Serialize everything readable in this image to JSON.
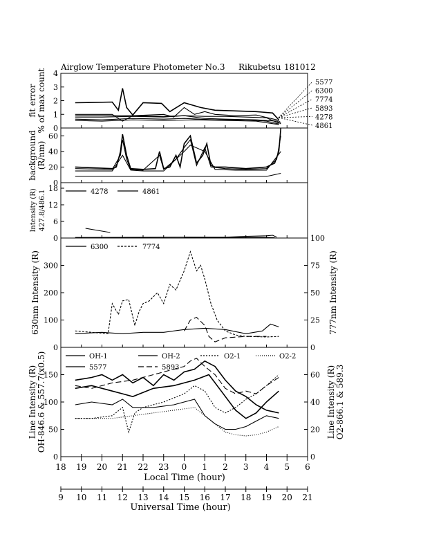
{
  "chart_data": {
    "type": "line",
    "title": {
      "instrument": "Airglow Temperature Photometer No.3",
      "site": "Rikubetsu",
      "date": "181012"
    },
    "x_local": {
      "label": "Local Time (hour)",
      "ticks": [
        "18",
        "19",
        "20",
        "21",
        "22",
        "23",
        "0",
        "1",
        "2",
        "3",
        "4",
        "5",
        "6"
      ]
    },
    "x_ut": {
      "label": "Universal Time (hour)",
      "ticks": [
        "9",
        "10",
        "11",
        "12",
        "13",
        "14",
        "15",
        "16",
        "17",
        "18",
        "19",
        "20",
        "21"
      ]
    },
    "panels": [
      {
        "id": "fit_error",
        "ylabel": [
          "fit error",
          "% of max count"
        ],
        "ylim": [
          0,
          4
        ],
        "yticks": [
          "0",
          "1",
          "2",
          "3",
          "4"
        ],
        "legend": [
          "5577",
          "6300",
          "7774",
          "5893",
          "4278",
          "4861"
        ],
        "series": [
          {
            "name": "5577",
            "dash": "",
            "x": [
              18.7,
              20.5,
              20.8,
              21.0,
              21.2,
              21.5,
              22.0,
              22.9,
              23.3,
              24.0,
              24.8,
              25.5,
              26.5,
              27.5,
              28.3,
              28.6
            ],
            "y": [
              1.85,
              1.9,
              1.3,
              2.9,
              1.5,
              0.95,
              1.85,
              1.8,
              1.2,
              1.85,
              1.5,
              1.3,
              1.25,
              1.2,
              1.1,
              0.6
            ]
          },
          {
            "name": "6300",
            "dash": "",
            "x": [
              18.7,
              20.5,
              21.0,
              21.5,
              23.0,
              23.5,
              24.0,
              24.5,
              25.0,
              25.5,
              26.5,
              27.5,
              28.5,
              28.7
            ],
            "y": [
              1.0,
              1.0,
              0.5,
              0.9,
              1.0,
              0.8,
              1.5,
              1.0,
              1.2,
              1.0,
              0.9,
              0.95,
              0.6,
              0.4
            ]
          },
          {
            "name": "7774",
            "dash": "",
            "x": [
              18.7,
              20.5,
              21.5,
              23.0,
              24.0,
              25.0,
              26.0,
              27.0,
              28.0,
              28.6
            ],
            "y": [
              0.9,
              0.9,
              0.9,
              0.85,
              0.9,
              0.85,
              0.85,
              0.8,
              0.75,
              0.35
            ]
          },
          {
            "name": "5893",
            "dash": "",
            "x": [
              18.7,
              20.0,
              21.5,
              23.0,
              24.0,
              25.0,
              26.0,
              27.5,
              28.5,
              28.7
            ],
            "y": [
              0.8,
              0.8,
              0.85,
              0.8,
              0.9,
              0.7,
              0.65,
              0.6,
              0.5,
              0.3
            ]
          },
          {
            "name": "4278",
            "dash": "",
            "x": [
              18.7,
              20.0,
              21.5,
              23.0,
              24.0,
              25.5,
              27.0,
              28.0,
              28.6
            ],
            "y": [
              0.65,
              0.6,
              0.7,
              0.65,
              0.7,
              0.6,
              0.6,
              0.5,
              0.3
            ]
          },
          {
            "name": "4861",
            "dash": "",
            "x": [
              18.7,
              20.0,
              21.5,
              23.0,
              24.5,
              26.0,
              27.5,
              28.6
            ],
            "y": [
              0.55,
              0.5,
              0.6,
              0.55,
              0.6,
              0.55,
              0.5,
              0.25
            ]
          }
        ]
      },
      {
        "id": "background",
        "ylabel": [
          "background",
          "(R/nm)"
        ],
        "ylim": [
          0,
          70
        ],
        "yticks": [
          "0",
          "20",
          "40",
          "60"
        ],
        "series": [
          {
            "name": "5577",
            "dash": "",
            "x": [
              18.7,
              20.5,
              20.7,
              20.9,
              21.0,
              21.2,
              21.4,
              22.0,
              22.6,
              22.8,
              23.0,
              23.3,
              23.6,
              23.8,
              24.0,
              24.3,
              24.6,
              24.9,
              25.1,
              25.3,
              25.5,
              26.0,
              27.0,
              28.0,
              28.4,
              28.6,
              28.7
            ],
            "y": [
              20,
              18,
              20,
              40,
              62,
              35,
              18,
              17,
              18,
              40,
              18,
              20,
              35,
              20,
              50,
              60,
              25,
              35,
              50,
              22,
              20,
              20,
              18,
              20,
              25,
              40,
              70
            ]
          },
          {
            "name": "6300",
            "dash": "",
            "x": [
              18.7,
              20.5,
              20.9,
              21.0,
              21.2,
              21.4,
              22.0,
              22.8,
              23.0,
              23.6,
              24.0,
              24.3,
              24.6,
              25.0,
              25.3,
              26.0,
              27.0,
              28.0,
              28.5,
              28.7
            ],
            "y": [
              18,
              17,
              35,
              55,
              30,
              17,
              16,
              35,
              17,
              30,
              45,
              55,
              22,
              45,
              20,
              18,
              17,
              18,
              30,
              60
            ]
          },
          {
            "name": "5893",
            "dash": "",
            "x": [
              18.7,
              20.5,
              21.0,
              21.4,
              22.0,
              23.0,
              24.0,
              24.3,
              25.0,
              25.5,
              26.5,
              28.0,
              28.7
            ],
            "y": [
              15,
              15,
              35,
              16,
              15,
              15,
              40,
              48,
              40,
              17,
              16,
              16,
              40
            ]
          },
          {
            "name": "4278",
            "dash": "",
            "x": [
              18.7,
              21.0,
              22.0,
              24.0,
              26.0,
              28.0,
              28.7
            ],
            "y": [
              8,
              8,
              8,
              8,
              8,
              8,
              12
            ]
          }
        ]
      },
      {
        "id": "blue_lines",
        "ylabel": [
          "Intensity (R)",
          "427.8/486.1"
        ],
        "ylim": [
          0,
          20
        ],
        "yticks": [
          "0",
          "6",
          "12",
          "18"
        ],
        "legend": [
          "4278",
          "4861"
        ],
        "series": [
          {
            "name": "4278",
            "dash": "",
            "x": [
              18.7,
              19.0,
              24.0,
              26.0,
              28.0,
              28.4
            ],
            "y": [
              0.2,
              0.2,
              0.3,
              0.2,
              0.2,
              0.1
            ]
          },
          {
            "name": "4861",
            "dash": "",
            "x": [
              19.2,
              19.6,
              20.0,
              20.4
            ],
            "y": [
              3.5,
              3.0,
              2.5,
              2.0
            ]
          },
          {
            "name": "4861",
            "dash": "",
            "x": [
              24.0,
              26.0,
              27.0,
              28.0,
              28.3,
              28.5
            ],
            "y": [
              0.3,
              0.3,
              0.6,
              0.8,
              1.0,
              0.3
            ]
          }
        ]
      },
      {
        "id": "oi_red_ir",
        "ylabel_left": "630nm Intensity (R)",
        "ylabel_right": "777nm Intensity (R)",
        "ylim_left": [
          0,
          400
        ],
        "yticks_left": [
          "0",
          "100",
          "200",
          "300"
        ],
        "ylim_right": [
          0,
          100
        ],
        "yticks_right": [
          "0",
          "25",
          "50",
          "75",
          "100"
        ],
        "legend": [
          "6300",
          "7774"
        ],
        "series": [
          {
            "name": "6300",
            "dash": "",
            "x": [
              18.7,
              20.0,
              21.0,
              22.0,
              23.0,
              24.0,
              25.0,
              26.0,
              27.0,
              27.8,
              28.2,
              28.6
            ],
            "y": [
              50,
              55,
              50,
              55,
              55,
              65,
              70,
              65,
              50,
              60,
              85,
              75
            ]
          },
          {
            "name": "7774",
            "dash": "3,2",
            "x": [
              18.7,
              19.5,
              20.3,
              20.5,
              20.8,
              21.0,
              21.3,
              21.6,
              21.8,
              22.0,
              22.3,
              22.7,
              23.0,
              23.3,
              23.6,
              24.0,
              24.3,
              24.6,
              24.8,
              25.0,
              25.3,
              25.6,
              26.0,
              26.5,
              27.0,
              28.0,
              28.6
            ],
            "y": [
              60,
              55,
              50,
              160,
              120,
              170,
              175,
              80,
              130,
              160,
              170,
              200,
              160,
              230,
              210,
              280,
              350,
              280,
              300,
              250,
              160,
              100,
              60,
              45,
              40,
              38,
              40
            ]
          },
          {
            "name": "6300-dashed",
            "dash": "8,4",
            "x": [
              24.0,
              24.3,
              24.6,
              25.0,
              25.2,
              25.5,
              26.0,
              27.0,
              28.0
            ],
            "y": [
              60,
              100,
              110,
              80,
              40,
              20,
              35,
              40,
              40
            ]
          }
        ]
      },
      {
        "id": "oh_o2",
        "ylabel_left": [
          "Line Intensity (R)",
          "OH-846.6 & 557.7(x0.5)"
        ],
        "ylabel_right": [
          "Line Intensity (R)",
          "O2-866.1 & 589.3"
        ],
        "ylim_left": [
          0,
          200
        ],
        "yticks_left": [
          "0",
          "50",
          "100",
          "150"
        ],
        "ylim_right": [
          0,
          80
        ],
        "yticks_right": [
          "0",
          "20",
          "40",
          "60"
        ],
        "legend": [
          "OH-1",
          "OH-2",
          "O2-1",
          "O2-2",
          "5577",
          "5893"
        ],
        "series": [
          {
            "name": "OH-1",
            "dash": "",
            "x": [
              18.7,
              19.5,
              20.5,
              21.0,
              21.5,
              22.5,
              23.5,
              24.5,
              25.0,
              25.5,
              26.0,
              26.5,
              27.0,
              27.5,
              28.0,
              28.6
            ],
            "y": [
              95,
              100,
              95,
              105,
              90,
              90,
              95,
              105,
              75,
              60,
              50,
              50,
              55,
              65,
              75,
              70
            ]
          },
          {
            "name": "OH-2",
            "dash": "",
            "x": [
              18.7,
              19.5,
              20.5,
              21.0,
              21.5,
              22.5,
              23.5,
              24.5,
              25.2,
              25.8,
              26.5,
              27.0,
              27.5,
              28.0,
              28.6
            ],
            "y": [
              125,
              130,
              120,
              115,
              110,
              125,
              130,
              140,
              150,
              120,
              85,
              70,
              80,
              100,
              120
            ]
          },
          {
            "name": "5577",
            "dash": "",
            "x": [
              18.7,
              19.5,
              20.0,
              20.5,
              21.0,
              21.5,
              22.0,
              22.5,
              23.0,
              23.5,
              24.0,
              24.5,
              25.0,
              25.5,
              26.0,
              26.5,
              27.0,
              27.5,
              28.0,
              28.6
            ],
            "y": [
              140,
              145,
              150,
              140,
              150,
              135,
              145,
              130,
              150,
              140,
              155,
              160,
              175,
              165,
              140,
              120,
              110,
              95,
              85,
              80
            ]
          },
          {
            "name": "O2-1",
            "dash": "2,2",
            "x": [
              18.7,
              19.5,
              20.5,
              21.0,
              21.3,
              21.6,
              22.0,
              23.0,
              24.0,
              24.5,
              25.0,
              25.5,
              26.0,
              26.5,
              27.0,
              27.5,
              28.0,
              28.6
            ],
            "y": [
              70,
              70,
              75,
              90,
              45,
              80,
              90,
              100,
              115,
              130,
              120,
              90,
              80,
              90,
              105,
              115,
              130,
              150
            ]
          },
          {
            "name": "O2-2",
            "dash": "1,2",
            "x": [
              18.7,
              19.5,
              20.5,
              21.5,
              22.5,
              23.5,
              24.5,
              25.0,
              25.5,
              26.0,
              26.5,
              27.0,
              27.5,
              28.0,
              28.6
            ],
            "y": [
              70,
              70,
              70,
              75,
              80,
              85,
              90,
              75,
              60,
              45,
              40,
              38,
              40,
              45,
              55
            ]
          },
          {
            "name": "5893",
            "dash": "8,4",
            "x": [
              18.7,
              19.5,
              20.5,
              21.5,
              22.5,
              23.5,
              24.0,
              24.3,
              24.6,
              25.0,
              25.5,
              26.0,
              26.5,
              27.0,
              27.5,
              28.0,
              28.6
            ],
            "y": [
              130,
              125,
              135,
              140,
              150,
              160,
              165,
              175,
              180,
              165,
              150,
              125,
              115,
              120,
              115,
              130,
              145
            ]
          }
        ]
      }
    ]
  }
}
